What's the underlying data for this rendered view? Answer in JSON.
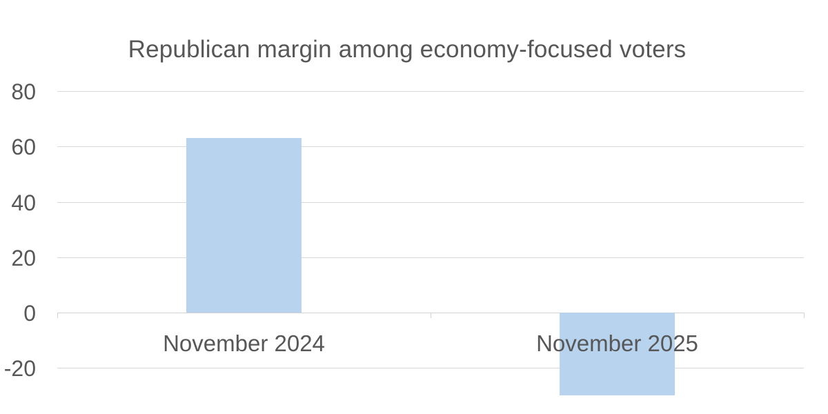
{
  "chart_data": {
    "type": "bar",
    "title": "Republican margin among economy-focused voters",
    "categories": [
      "November 2024",
      "November 2025"
    ],
    "values": [
      63,
      -30
    ],
    "xlabel": "",
    "ylabel": "",
    "ylim": [
      -40,
      80
    ],
    "yticks": [
      80,
      60,
      40,
      20,
      0,
      -20
    ],
    "grid": true,
    "legend": false,
    "colors": {
      "bar": "#b7d3ee",
      "text": "#575757",
      "gridline": "#d9d9d9",
      "axis": "#d2d2d2",
      "background": "#ffffff"
    }
  }
}
